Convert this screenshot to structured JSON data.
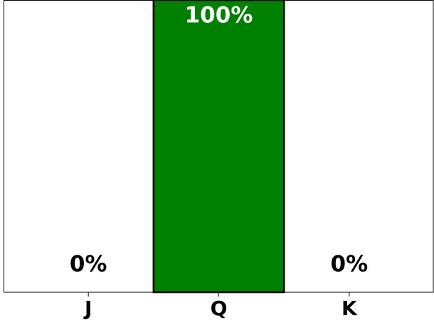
{
  "chart_data": {
    "type": "bar",
    "categories": [
      "J",
      "Q",
      "K"
    ],
    "values": [
      0,
      100,
      0
    ],
    "value_labels": [
      "0%",
      "100%",
      "0%"
    ],
    "color": "#008000",
    "ylim": [
      0,
      100
    ]
  }
}
